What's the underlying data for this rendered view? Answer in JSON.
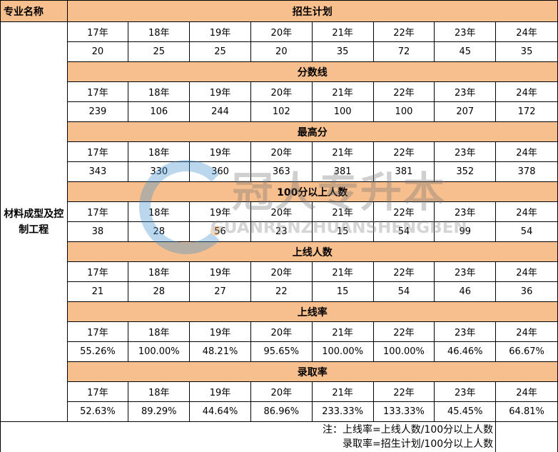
{
  "header": {
    "major_label": "专业名称"
  },
  "major": "材料成型及控制工程",
  "years": [
    "17年",
    "18年",
    "19年",
    "20年",
    "21年",
    "22年",
    "23年",
    "24年"
  ],
  "sections": [
    {
      "title": "招生计划",
      "values": [
        "20",
        "25",
        "25",
        "20",
        "35",
        "72",
        "45",
        "35"
      ]
    },
    {
      "title": "分数线",
      "values": [
        "239",
        "106",
        "244",
        "102",
        "100",
        "100",
        "207",
        "172"
      ]
    },
    {
      "title": "最高分",
      "values": [
        "343",
        "330",
        "360",
        "363",
        "381",
        "381",
        "352",
        "378"
      ]
    },
    {
      "title": "100分以上人数",
      "values": [
        "38",
        "28",
        "56",
        "23",
        "15",
        "54",
        "99",
        "54"
      ]
    },
    {
      "title": "上线人数",
      "values": [
        "21",
        "28",
        "27",
        "22",
        "15",
        "54",
        "46",
        "36"
      ]
    },
    {
      "title": "上线率",
      "values": [
        "55.26%",
        "100.00%",
        "48.21%",
        "95.65%",
        "100.00%",
        "100.00%",
        "46.46%",
        "66.67%"
      ]
    },
    {
      "title": "录取率",
      "values": [
        "52.63%",
        "89.29%",
        "44.64%",
        "86.96%",
        "233.33%",
        "133.33%",
        "45.45%",
        "64.81%"
      ]
    }
  ],
  "note": {
    "line1": "注：上线率=上线人数/100分以上人数",
    "line2": "录取率=招生计划/100分以上人数"
  },
  "watermark": {
    "cn": "冠人专升本",
    "en": "GUANRENZHUANSHENGBEN"
  },
  "colors": {
    "header_bg": "#f8bf8e"
  }
}
